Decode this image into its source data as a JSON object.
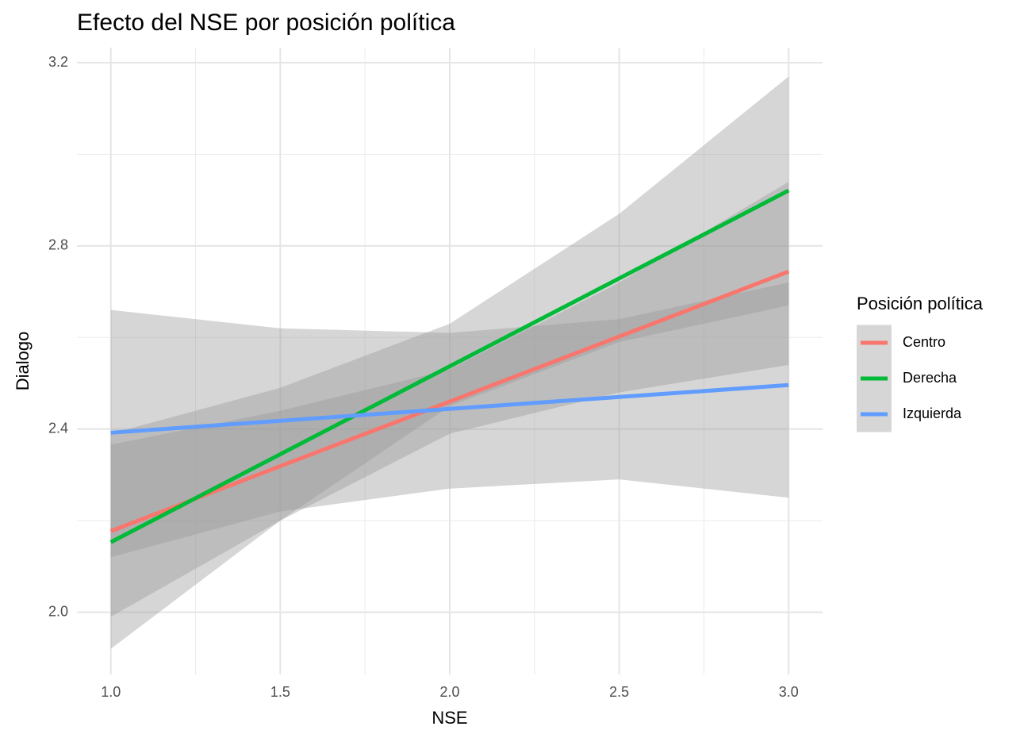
{
  "chart_data": {
    "type": "line",
    "title": "Efecto del NSE por posición política",
    "x_label": "NSE",
    "y_label": "Dialogo",
    "legend_title": "Posición política",
    "legend": "right",
    "x": [
      1.0,
      1.5,
      2.0,
      2.5,
      3.0
    ],
    "series": [
      {
        "name": "Centro",
        "color": "#F8766D",
        "values": [
          2.177,
          2.319,
          2.46,
          2.602,
          2.744
        ],
        "lower": [
          1.99,
          2.2,
          2.39,
          2.48,
          2.54
        ],
        "upper": [
          2.366,
          2.44,
          2.53,
          2.72,
          2.94
        ]
      },
      {
        "name": "Derecha",
        "color": "#00BA38",
        "values": [
          2.153,
          2.345,
          2.537,
          2.729,
          2.921
        ],
        "lower": [
          1.92,
          2.2,
          2.45,
          2.59,
          2.67
        ],
        "upper": [
          2.39,
          2.49,
          2.63,
          2.87,
          3.17
        ]
      },
      {
        "name": "Izquierda",
        "color": "#619CFF",
        "values": [
          2.392,
          2.418,
          2.444,
          2.47,
          2.496
        ],
        "lower": [
          2.12,
          2.22,
          2.27,
          2.29,
          2.25
        ],
        "upper": [
          2.66,
          2.62,
          2.61,
          2.64,
          2.72
        ]
      }
    ],
    "band_color": "#999999",
    "xlim": [
      0.9,
      3.1
    ],
    "ylim": [
      1.864,
      3.233
    ],
    "xticks": [
      {
        "value": 1,
        "label": "1.0"
      },
      1.5,
      {
        "value": 2,
        "label": "2.0"
      },
      2.5,
      {
        "value": 3,
        "label": "3.0"
      }
    ],
    "yticks": [
      {
        "value": 2,
        "label": "2.0"
      },
      2.4,
      2.8,
      3.2
    ],
    "xminor": [
      1.25,
      1.75,
      2.25,
      2.75
    ],
    "yminor": [
      2.2,
      2.6,
      3.0
    ],
    "grid": true
  }
}
